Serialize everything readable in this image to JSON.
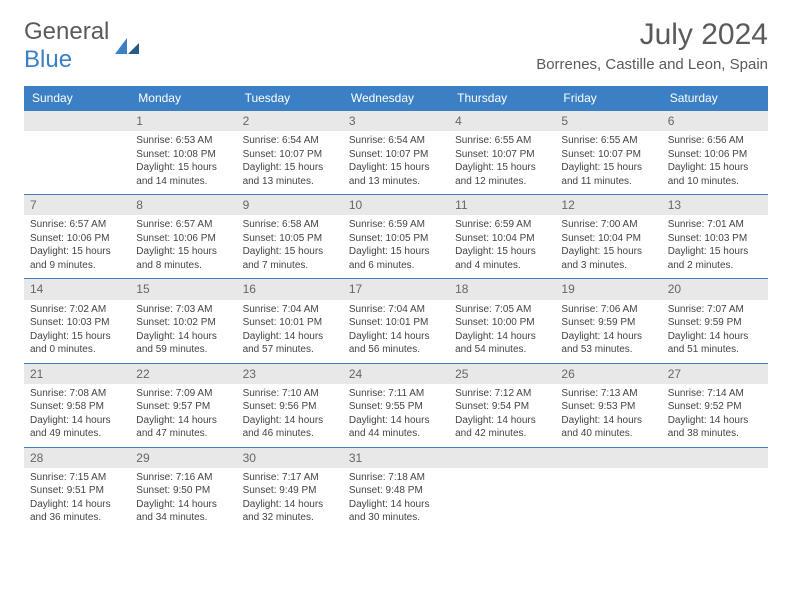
{
  "brand": {
    "part1": "General",
    "part2": "Blue"
  },
  "title": "July 2024",
  "location": "Borrenes, Castille and Leon, Spain",
  "headers": [
    "Sunday",
    "Monday",
    "Tuesday",
    "Wednesday",
    "Thursday",
    "Friday",
    "Saturday"
  ],
  "colors": {
    "header_bg": "#3b7fc4",
    "header_fg": "#ffffff",
    "daynum_bg": "#e8e8e8",
    "text": "#444444",
    "title_color": "#5a5a5a"
  },
  "weeks": [
    [
      null,
      {
        "n": "1",
        "sr": "6:53 AM",
        "ss": "10:08 PM",
        "dl": "15 hours and 14 minutes."
      },
      {
        "n": "2",
        "sr": "6:54 AM",
        "ss": "10:07 PM",
        "dl": "15 hours and 13 minutes."
      },
      {
        "n": "3",
        "sr": "6:54 AM",
        "ss": "10:07 PM",
        "dl": "15 hours and 13 minutes."
      },
      {
        "n": "4",
        "sr": "6:55 AM",
        "ss": "10:07 PM",
        "dl": "15 hours and 12 minutes."
      },
      {
        "n": "5",
        "sr": "6:55 AM",
        "ss": "10:07 PM",
        "dl": "15 hours and 11 minutes."
      },
      {
        "n": "6",
        "sr": "6:56 AM",
        "ss": "10:06 PM",
        "dl": "15 hours and 10 minutes."
      }
    ],
    [
      {
        "n": "7",
        "sr": "6:57 AM",
        "ss": "10:06 PM",
        "dl": "15 hours and 9 minutes."
      },
      {
        "n": "8",
        "sr": "6:57 AM",
        "ss": "10:06 PM",
        "dl": "15 hours and 8 minutes."
      },
      {
        "n": "9",
        "sr": "6:58 AM",
        "ss": "10:05 PM",
        "dl": "15 hours and 7 minutes."
      },
      {
        "n": "10",
        "sr": "6:59 AM",
        "ss": "10:05 PM",
        "dl": "15 hours and 6 minutes."
      },
      {
        "n": "11",
        "sr": "6:59 AM",
        "ss": "10:04 PM",
        "dl": "15 hours and 4 minutes."
      },
      {
        "n": "12",
        "sr": "7:00 AM",
        "ss": "10:04 PM",
        "dl": "15 hours and 3 minutes."
      },
      {
        "n": "13",
        "sr": "7:01 AM",
        "ss": "10:03 PM",
        "dl": "15 hours and 2 minutes."
      }
    ],
    [
      {
        "n": "14",
        "sr": "7:02 AM",
        "ss": "10:03 PM",
        "dl": "15 hours and 0 minutes."
      },
      {
        "n": "15",
        "sr": "7:03 AM",
        "ss": "10:02 PM",
        "dl": "14 hours and 59 minutes."
      },
      {
        "n": "16",
        "sr": "7:04 AM",
        "ss": "10:01 PM",
        "dl": "14 hours and 57 minutes."
      },
      {
        "n": "17",
        "sr": "7:04 AM",
        "ss": "10:01 PM",
        "dl": "14 hours and 56 minutes."
      },
      {
        "n": "18",
        "sr": "7:05 AM",
        "ss": "10:00 PM",
        "dl": "14 hours and 54 minutes."
      },
      {
        "n": "19",
        "sr": "7:06 AM",
        "ss": "9:59 PM",
        "dl": "14 hours and 53 minutes."
      },
      {
        "n": "20",
        "sr": "7:07 AM",
        "ss": "9:59 PM",
        "dl": "14 hours and 51 minutes."
      }
    ],
    [
      {
        "n": "21",
        "sr": "7:08 AM",
        "ss": "9:58 PM",
        "dl": "14 hours and 49 minutes."
      },
      {
        "n": "22",
        "sr": "7:09 AM",
        "ss": "9:57 PM",
        "dl": "14 hours and 47 minutes."
      },
      {
        "n": "23",
        "sr": "7:10 AM",
        "ss": "9:56 PM",
        "dl": "14 hours and 46 minutes."
      },
      {
        "n": "24",
        "sr": "7:11 AM",
        "ss": "9:55 PM",
        "dl": "14 hours and 44 minutes."
      },
      {
        "n": "25",
        "sr": "7:12 AM",
        "ss": "9:54 PM",
        "dl": "14 hours and 42 minutes."
      },
      {
        "n": "26",
        "sr": "7:13 AM",
        "ss": "9:53 PM",
        "dl": "14 hours and 40 minutes."
      },
      {
        "n": "27",
        "sr": "7:14 AM",
        "ss": "9:52 PM",
        "dl": "14 hours and 38 minutes."
      }
    ],
    [
      {
        "n": "28",
        "sr": "7:15 AM",
        "ss": "9:51 PM",
        "dl": "14 hours and 36 minutes."
      },
      {
        "n": "29",
        "sr": "7:16 AM",
        "ss": "9:50 PM",
        "dl": "14 hours and 34 minutes."
      },
      {
        "n": "30",
        "sr": "7:17 AM",
        "ss": "9:49 PM",
        "dl": "14 hours and 32 minutes."
      },
      {
        "n": "31",
        "sr": "7:18 AM",
        "ss": "9:48 PM",
        "dl": "14 hours and 30 minutes."
      },
      null,
      null,
      null
    ]
  ],
  "labels": {
    "sunrise": "Sunrise:",
    "sunset": "Sunset:",
    "daylight": "Daylight:"
  }
}
